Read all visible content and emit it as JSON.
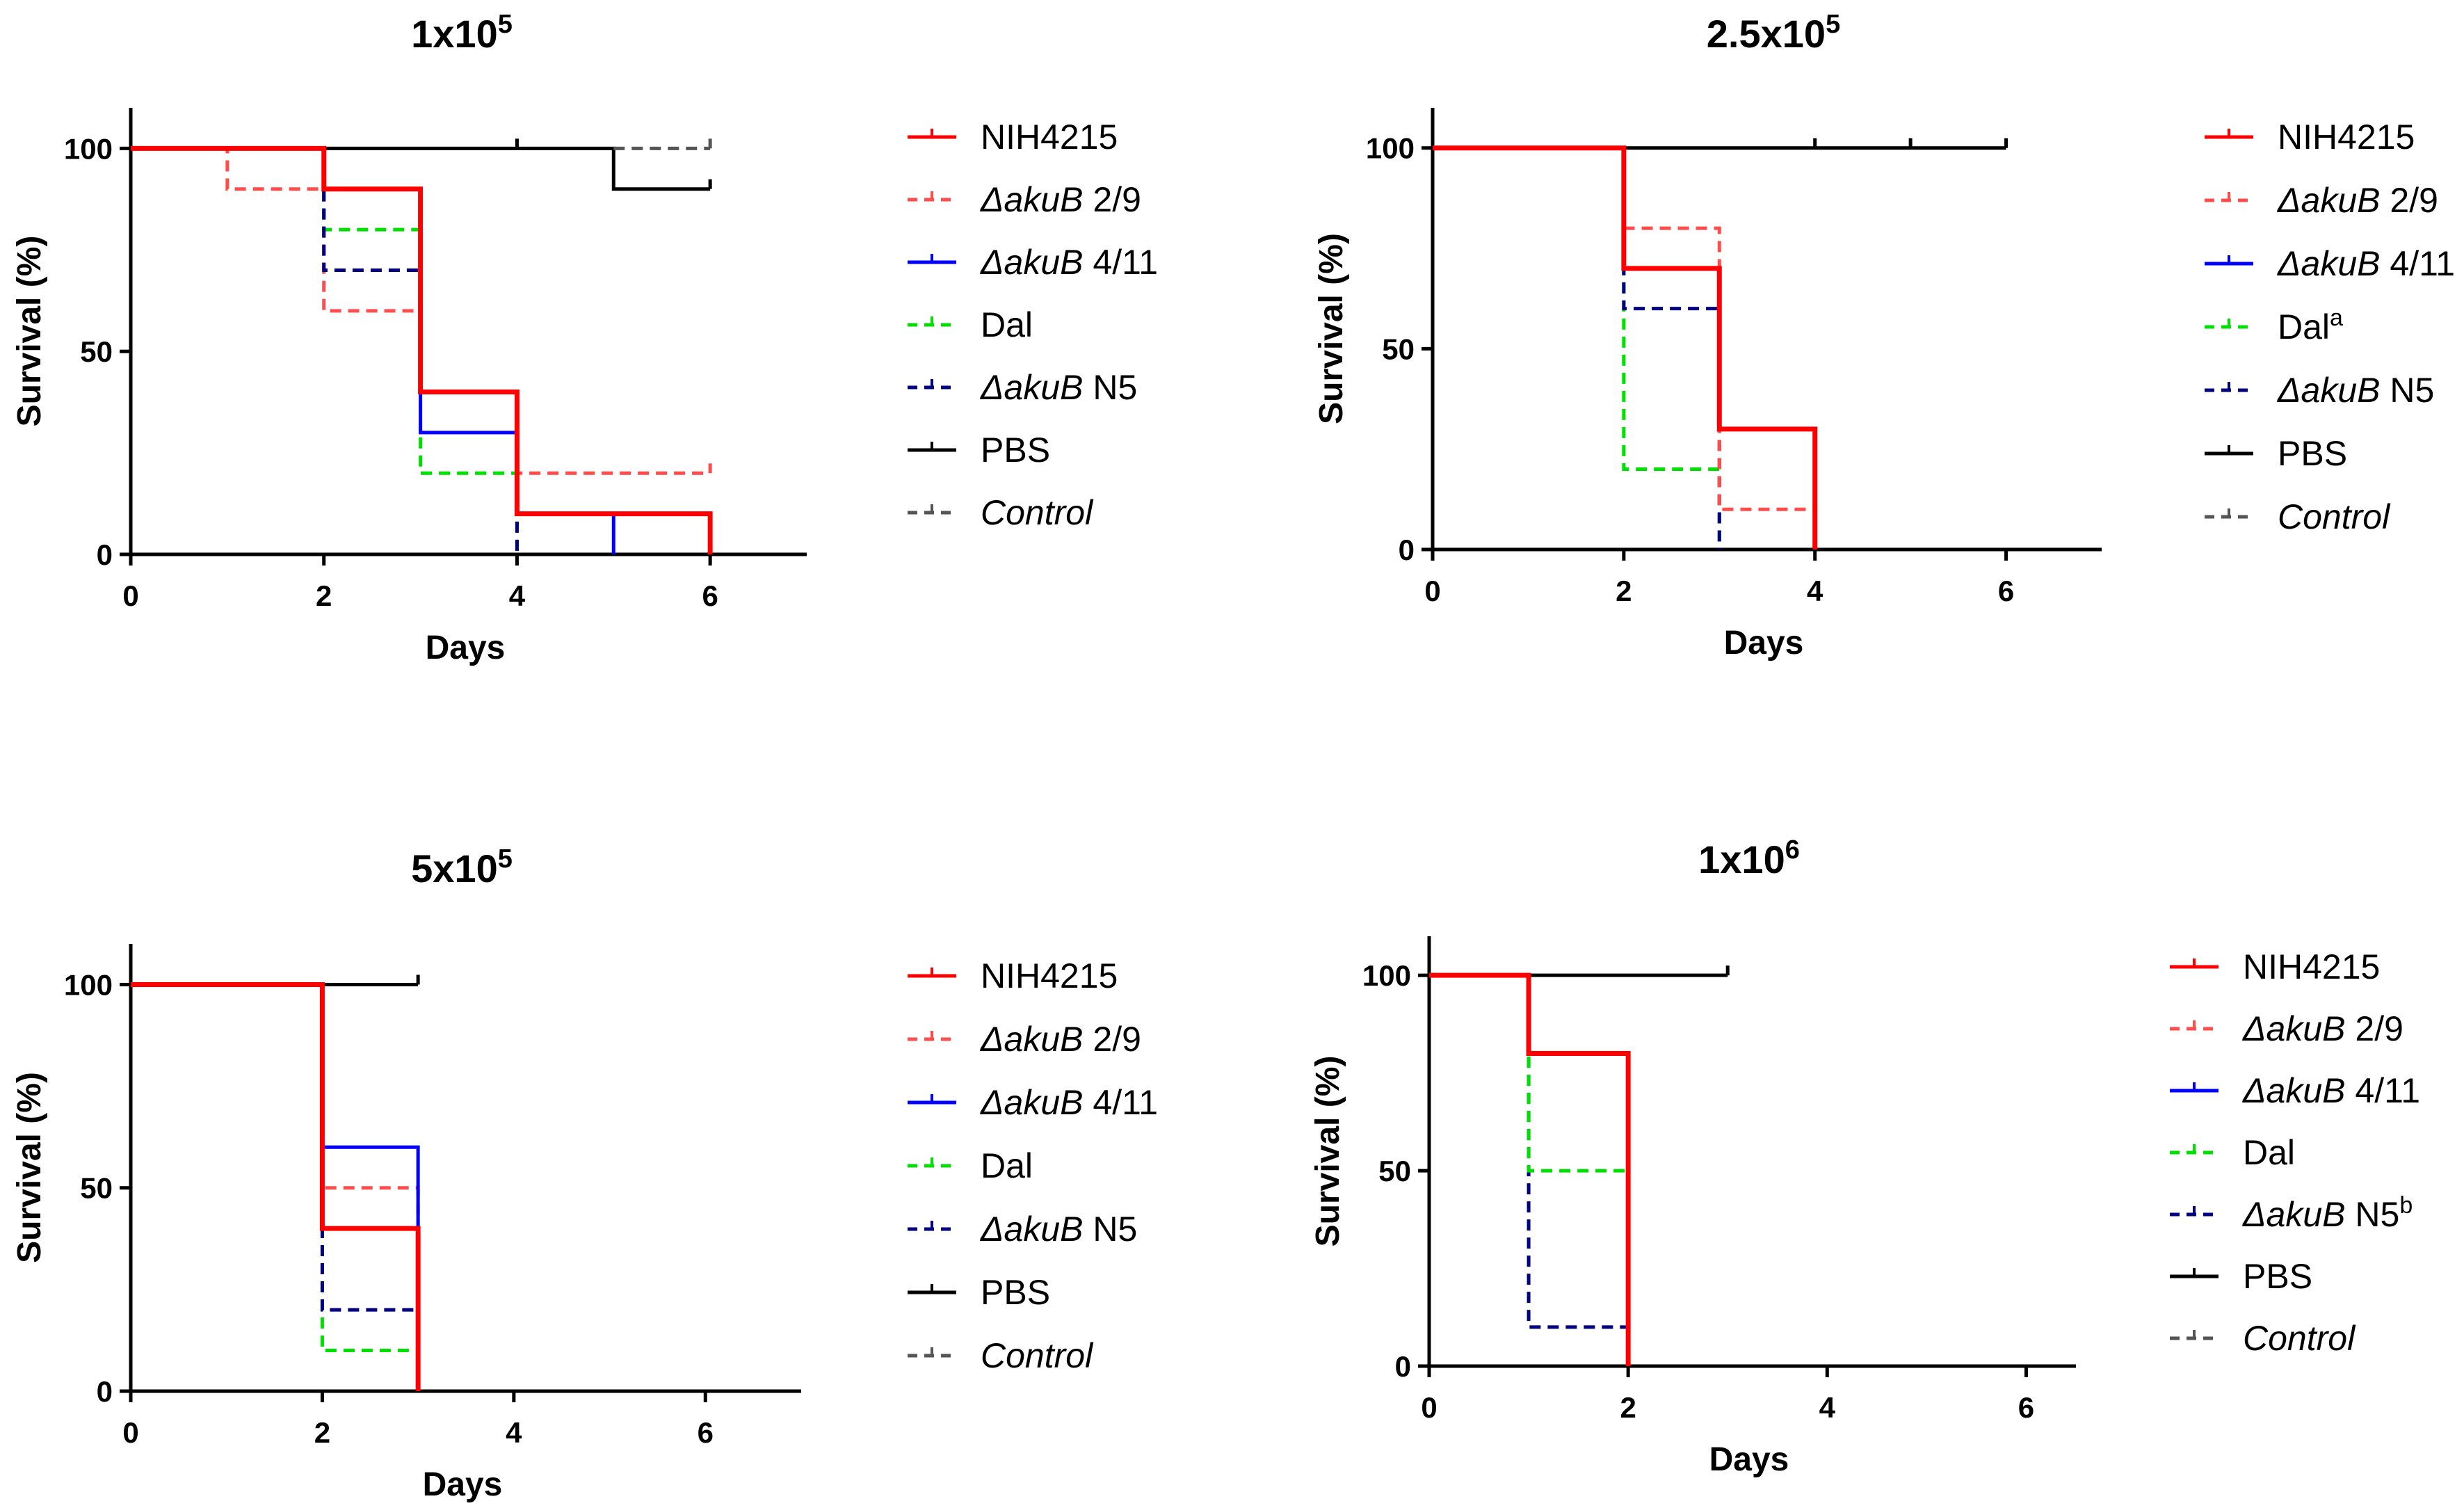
{
  "colors": {
    "NIH4215": "#ff0000",
    "akuB29": "#ff4d4d",
    "akuB411": "#0000ff",
    "Dal": "#00e000",
    "akuBN5": "#000080",
    "PBS": "#000000",
    "Control": "#555555"
  },
  "chart_data": [
    {
      "type": "line",
      "subtype": "kaplan-meier",
      "title_base": "1x10",
      "title_exp": "5",
      "xlabel": "Days",
      "ylabel": "Survival (%)",
      "xlim": [
        0,
        7
      ],
      "ylim": [
        0,
        110
      ],
      "xticks": [
        "0",
        "2",
        "4",
        "6"
      ],
      "yticks": [
        "0",
        "50",
        "100"
      ],
      "legend_position": "right",
      "series": [
        {
          "key": "PBS",
          "style": "solid",
          "steps": [
            [
              0,
              100
            ],
            [
              5,
              90
            ],
            [
              6,
              90
            ]
          ],
          "censor": [
            [
              4,
              100
            ],
            [
              6,
              90
            ]
          ]
        },
        {
          "key": "Control",
          "style": "dashed",
          "steps": [
            [
              5,
              100
            ],
            [
              6,
              100
            ]
          ],
          "censor": [
            [
              6,
              100
            ]
          ]
        },
        {
          "key": "akuB29",
          "style": "dashed",
          "steps": [
            [
              0,
              100
            ],
            [
              1,
              90
            ],
            [
              2,
              60
            ],
            [
              3,
              40
            ],
            [
              4,
              20
            ],
            [
              6,
              20
            ]
          ],
          "censor": [
            [
              6,
              20
            ]
          ]
        },
        {
          "key": "Dal",
          "style": "dashed",
          "steps": [
            [
              0,
              100
            ],
            [
              2,
              80
            ],
            [
              3,
              20
            ],
            [
              4,
              0
            ]
          ],
          "censor": []
        },
        {
          "key": "akuBN5",
          "style": "dashed",
          "steps": [
            [
              0,
              100
            ],
            [
              2,
              70
            ],
            [
              3,
              40
            ],
            [
              4,
              0
            ]
          ],
          "censor": []
        },
        {
          "key": "akuB411",
          "style": "solid",
          "steps": [
            [
              0,
              100
            ],
            [
              2,
              90
            ],
            [
              3,
              30
            ],
            [
              4,
              10
            ],
            [
              5,
              0
            ]
          ],
          "censor": []
        },
        {
          "key": "NIH4215",
          "style": "solid",
          "steps": [
            [
              0,
              100
            ],
            [
              2,
              90
            ],
            [
              3,
              40
            ],
            [
              4,
              10
            ],
            [
              6,
              0
            ]
          ],
          "censor": []
        }
      ],
      "legend": [
        {
          "key": "NIH4215",
          "style": "solid",
          "parts": [
            {
              "t": "NIH4215",
              "i": false
            }
          ],
          "sup": ""
        },
        {
          "key": "akuB29",
          "style": "dashed",
          "parts": [
            {
              "t": "ΔakuB",
              "i": true
            },
            {
              "t": " 2/9",
              "i": false
            }
          ],
          "sup": ""
        },
        {
          "key": "akuB411",
          "style": "solid",
          "parts": [
            {
              "t": "ΔakuB",
              "i": true
            },
            {
              "t": " 4/11",
              "i": false
            }
          ],
          "sup": ""
        },
        {
          "key": "Dal",
          "style": "dashed",
          "parts": [
            {
              "t": "Dal",
              "i": false
            }
          ],
          "sup": ""
        },
        {
          "key": "akuBN5",
          "style": "dashed",
          "parts": [
            {
              "t": "ΔakuB",
              "i": true
            },
            {
              "t": " N5",
              "i": false
            }
          ],
          "sup": ""
        },
        {
          "key": "PBS",
          "style": "solid",
          "parts": [
            {
              "t": "PBS",
              "i": false
            }
          ],
          "sup": ""
        },
        {
          "key": "Control",
          "style": "dashed",
          "parts": [
            {
              "t": "Control",
              "i": true
            }
          ],
          "sup": ""
        }
      ]
    },
    {
      "type": "line",
      "subtype": "kaplan-meier",
      "title_base": "2.5x10",
      "title_exp": "5",
      "xlabel": "Days",
      "ylabel": "Survival (%)",
      "xlim": [
        0,
        7
      ],
      "ylim": [
        0,
        110
      ],
      "xticks": [
        "0",
        "2",
        "4",
        "6"
      ],
      "yticks": [
        "0",
        "50",
        "100"
      ],
      "legend_position": "right",
      "series": [
        {
          "key": "PBS",
          "style": "solid",
          "steps": [
            [
              0,
              100
            ],
            [
              6,
              100
            ]
          ],
          "censor": [
            [
              4,
              100
            ],
            [
              5,
              100
            ],
            [
              6,
              100
            ]
          ]
        },
        {
          "key": "Dal",
          "style": "dashed",
          "steps": [
            [
              0,
              100
            ],
            [
              2,
              20
            ],
            [
              3,
              0
            ]
          ],
          "censor": []
        },
        {
          "key": "akuBN5",
          "style": "dashed",
          "steps": [
            [
              0,
              100
            ],
            [
              2,
              60
            ],
            [
              3,
              0
            ]
          ],
          "censor": []
        },
        {
          "key": "akuB29",
          "style": "dashed",
          "steps": [
            [
              0,
              100
            ],
            [
              2,
              80
            ],
            [
              3,
              10
            ],
            [
              4,
              10
            ]
          ],
          "censor": []
        },
        {
          "key": "NIH4215",
          "style": "solid",
          "steps": [
            [
              0,
              100
            ],
            [
              2,
              70
            ],
            [
              3,
              30
            ],
            [
              4,
              0
            ]
          ],
          "censor": []
        }
      ],
      "legend": [
        {
          "key": "NIH4215",
          "style": "solid",
          "parts": [
            {
              "t": "NIH4215",
              "i": false
            }
          ],
          "sup": ""
        },
        {
          "key": "akuB29",
          "style": "dashed",
          "parts": [
            {
              "t": "ΔakuB",
              "i": true
            },
            {
              "t": " 2/9",
              "i": false
            }
          ],
          "sup": ""
        },
        {
          "key": "akuB411",
          "style": "solid",
          "parts": [
            {
              "t": "ΔakuB",
              "i": true
            },
            {
              "t": " 4/11",
              "i": false
            }
          ],
          "sup": ""
        },
        {
          "key": "Dal",
          "style": "dashed",
          "parts": [
            {
              "t": "Dal",
              "i": false
            }
          ],
          "sup": "a"
        },
        {
          "key": "akuBN5",
          "style": "dashed",
          "parts": [
            {
              "t": "ΔakuB",
              "i": true
            },
            {
              "t": " N5",
              "i": false
            }
          ],
          "sup": ""
        },
        {
          "key": "PBS",
          "style": "solid",
          "parts": [
            {
              "t": "PBS",
              "i": false
            }
          ],
          "sup": ""
        },
        {
          "key": "Control",
          "style": "dashed",
          "parts": [
            {
              "t": "Control",
              "i": true
            }
          ],
          "sup": ""
        }
      ]
    },
    {
      "type": "line",
      "subtype": "kaplan-meier",
      "title_base": "5x10",
      "title_exp": "5",
      "xlabel": "Days",
      "ylabel": "Survival (%)",
      "xlim": [
        0,
        7
      ],
      "ylim": [
        0,
        110
      ],
      "xticks": [
        "0",
        "2",
        "4",
        "6"
      ],
      "yticks": [
        "0",
        "50",
        "100"
      ],
      "legend_position": "right",
      "series": [
        {
          "key": "PBS",
          "style": "solid",
          "steps": [
            [
              0,
              100
            ],
            [
              3,
              100
            ]
          ],
          "censor": [
            [
              3,
              100
            ]
          ]
        },
        {
          "key": "Dal",
          "style": "dashed",
          "steps": [
            [
              0,
              100
            ],
            [
              2,
              10
            ],
            [
              3,
              0
            ]
          ],
          "censor": []
        },
        {
          "key": "akuBN5",
          "style": "dashed",
          "steps": [
            [
              0,
              100
            ],
            [
              2,
              20
            ],
            [
              3,
              0
            ]
          ],
          "censor": []
        },
        {
          "key": "akuB29",
          "style": "dashed",
          "steps": [
            [
              0,
              100
            ],
            [
              2,
              50
            ],
            [
              3,
              0
            ]
          ],
          "censor": []
        },
        {
          "key": "akuB411",
          "style": "solid",
          "steps": [
            [
              0,
              100
            ],
            [
              2,
              60
            ],
            [
              3,
              0
            ]
          ],
          "censor": []
        },
        {
          "key": "NIH4215",
          "style": "solid",
          "steps": [
            [
              0,
              100
            ],
            [
              2,
              40
            ],
            [
              3,
              0
            ]
          ],
          "censor": []
        }
      ],
      "legend": [
        {
          "key": "NIH4215",
          "style": "solid",
          "parts": [
            {
              "t": "NIH4215",
              "i": false
            }
          ],
          "sup": ""
        },
        {
          "key": "akuB29",
          "style": "dashed",
          "parts": [
            {
              "t": "ΔakuB",
              "i": true
            },
            {
              "t": " 2/9",
              "i": false
            }
          ],
          "sup": ""
        },
        {
          "key": "akuB411",
          "style": "solid",
          "parts": [
            {
              "t": "ΔakuB",
              "i": true
            },
            {
              "t": " 4/11",
              "i": false
            }
          ],
          "sup": ""
        },
        {
          "key": "Dal",
          "style": "dashed",
          "parts": [
            {
              "t": "Dal",
              "i": false
            }
          ],
          "sup": ""
        },
        {
          "key": "akuBN5",
          "style": "dashed",
          "parts": [
            {
              "t": "ΔakuB",
              "i": true
            },
            {
              "t": " N5",
              "i": false
            }
          ],
          "sup": ""
        },
        {
          "key": "PBS",
          "style": "solid",
          "parts": [
            {
              "t": "PBS",
              "i": false
            }
          ],
          "sup": ""
        },
        {
          "key": "Control",
          "style": "dashed",
          "parts": [
            {
              "t": "Control",
              "i": true
            }
          ],
          "sup": ""
        }
      ]
    },
    {
      "type": "line",
      "subtype": "kaplan-meier",
      "title_base": "1x10",
      "title_exp": "6",
      "xlabel": "Days",
      "ylabel": "Survival (%)",
      "xlim": [
        0,
        6.5
      ],
      "ylim": [
        0,
        110
      ],
      "xticks": [
        "0",
        "2",
        "4",
        "6"
      ],
      "yticks": [
        "0",
        "50",
        "100"
      ],
      "legend_position": "right",
      "series": [
        {
          "key": "PBS",
          "style": "solid",
          "steps": [
            [
              0,
              100
            ],
            [
              3,
              100
            ]
          ],
          "censor": [
            [
              3,
              100
            ]
          ]
        },
        {
          "key": "akuBN5",
          "style": "dashed",
          "steps": [
            [
              0,
              100
            ],
            [
              1,
              10
            ],
            [
              2,
              0
            ]
          ],
          "censor": []
        },
        {
          "key": "Dal",
          "style": "dashed",
          "steps": [
            [
              0,
              100
            ],
            [
              1,
              50
            ],
            [
              2,
              0
            ]
          ],
          "censor": []
        },
        {
          "key": "NIH4215",
          "style": "solid",
          "steps": [
            [
              0,
              100
            ],
            [
              1,
              80
            ],
            [
              2,
              0
            ]
          ],
          "censor": []
        }
      ],
      "legend": [
        {
          "key": "NIH4215",
          "style": "solid",
          "parts": [
            {
              "t": "NIH4215",
              "i": false
            }
          ],
          "sup": ""
        },
        {
          "key": "akuB29",
          "style": "dashed",
          "parts": [
            {
              "t": "ΔakuB",
              "i": true
            },
            {
              "t": " 2/9",
              "i": false
            }
          ],
          "sup": ""
        },
        {
          "key": "akuB411",
          "style": "solid",
          "parts": [
            {
              "t": "ΔakuB",
              "i": true
            },
            {
              "t": " 4/11",
              "i": false
            }
          ],
          "sup": ""
        },
        {
          "key": "Dal",
          "style": "dashed",
          "parts": [
            {
              "t": "Dal",
              "i": false
            }
          ],
          "sup": ""
        },
        {
          "key": "akuBN5",
          "style": "dashed",
          "parts": [
            {
              "t": "ΔakuB",
              "i": true
            },
            {
              "t": " N5",
              "i": false
            }
          ],
          "sup": "b"
        },
        {
          "key": "PBS",
          "style": "solid",
          "parts": [
            {
              "t": "PBS",
              "i": false
            }
          ],
          "sup": ""
        },
        {
          "key": "Control",
          "style": "dashed",
          "parts": [
            {
              "t": "Control",
              "i": true
            }
          ],
          "sup": ""
        }
      ]
    }
  ]
}
